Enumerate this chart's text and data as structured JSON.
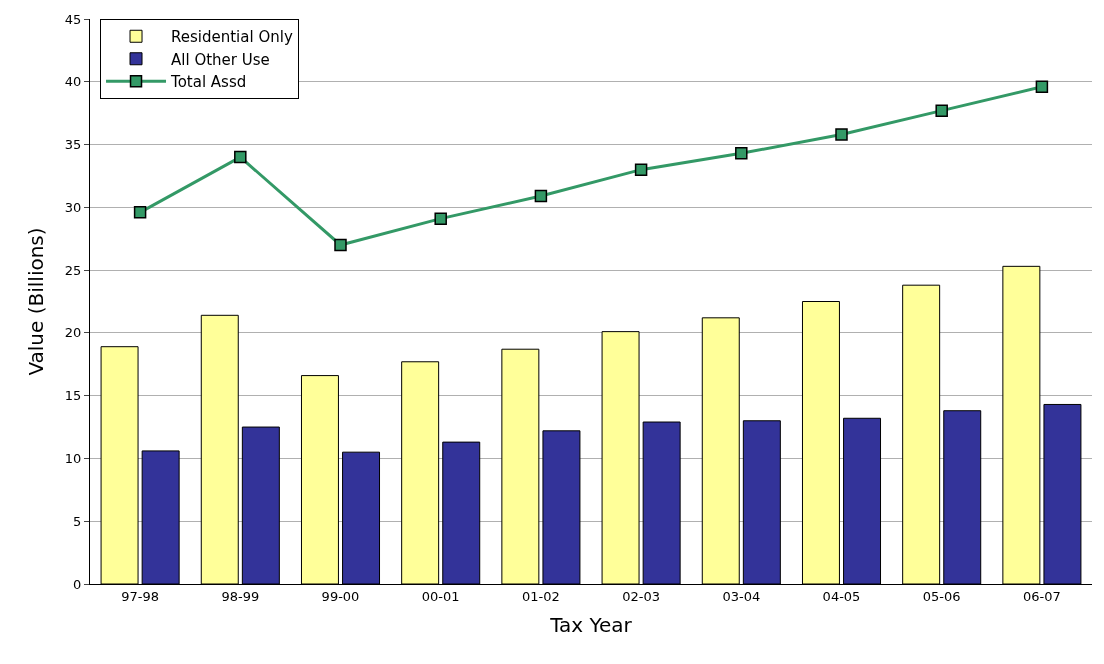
{
  "chart_data": {
    "type": "bar",
    "xlabel": "Tax Year",
    "ylabel": "Value (Billions)",
    "categories": [
      "97-98",
      "98-99",
      "99-00",
      "00-01",
      "01-02",
      "02-03",
      "03-04",
      "04-05",
      "05-06",
      "06-07"
    ],
    "series": [
      {
        "name": "Residential Only",
        "color": "#ffff99",
        "values": [
          18.9,
          21.4,
          16.6,
          17.7,
          18.7,
          20.1,
          21.2,
          22.5,
          23.8,
          25.3
        ]
      },
      {
        "name": "All Other Use",
        "color": "#333399",
        "values": [
          10.6,
          12.5,
          10.5,
          11.3,
          12.2,
          12.9,
          13.0,
          13.2,
          13.8,
          14.3
        ]
      },
      {
        "name": "Total Assd",
        "color": "#339966",
        "type": "line",
        "marker": "square",
        "values": [
          29.6,
          34.0,
          27.0,
          29.1,
          30.9,
          33.0,
          34.3,
          35.8,
          37.7,
          39.6
        ]
      }
    ],
    "ylim": [
      0,
      45
    ],
    "yticks": [
      0,
      5,
      10,
      15,
      20,
      25,
      30,
      35,
      40,
      45
    ],
    "grid": "y",
    "legend": "top left"
  }
}
